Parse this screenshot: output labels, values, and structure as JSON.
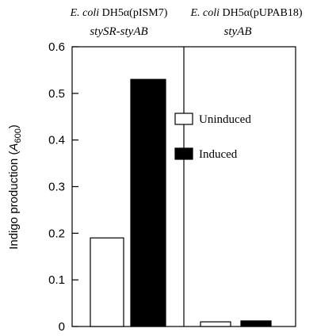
{
  "chart_data": {
    "type": "bar",
    "ylabel_main": "Indigo production (",
    "ylabel_symbol": "A",
    "ylabel_subscript": "600",
    "ylabel_close": ")",
    "ylim": [
      0,
      0.6
    ],
    "yticks": [
      "0",
      "0.1",
      "0.2",
      "0.3",
      "0.4",
      "0.5",
      "0.6"
    ],
    "ytick_values": [
      0,
      0.1,
      0.2,
      0.3,
      0.4,
      0.5,
      0.6
    ],
    "panels": [
      {
        "title_species": "E. coli",
        "title_strain": " DH5α(pISM7)",
        "subtitle": "stySR-styAB",
        "values": [
          0.19,
          0.53
        ]
      },
      {
        "title_species": "E. coli",
        "title_strain": " DH5α(pUPAB18)",
        "subtitle": "styAB",
        "values": [
          0.01,
          0.012
        ]
      }
    ],
    "series": [
      {
        "name": "Uninduced",
        "color": "#ffffff"
      },
      {
        "name": "Induced",
        "color": "#000000"
      }
    ],
    "legend_position": "right panel, upper"
  }
}
